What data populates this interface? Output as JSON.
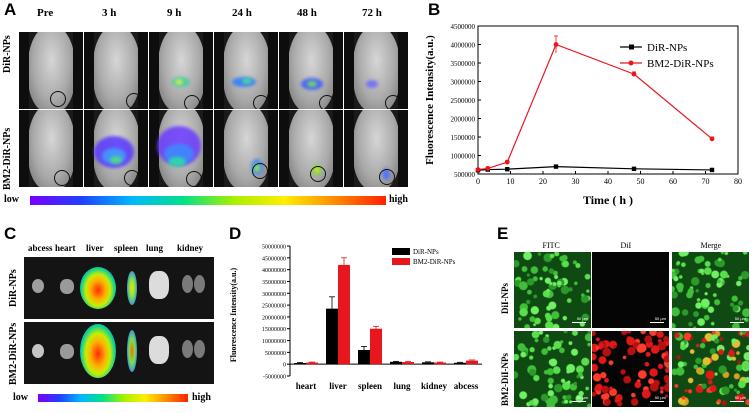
{
  "panelA": {
    "letter": "A",
    "timepoints": [
      "Pre",
      "3 h",
      "9 h",
      "24 h",
      "48 h",
      "72 h"
    ],
    "rows": [
      "DiR-NPs",
      "BM2-DiR-NPs"
    ],
    "scale_low": "low",
    "scale_high": "high"
  },
  "panelB": {
    "letter": "B",
    "chart_data": {
      "type": "line",
      "title": "",
      "xlabel": "Time ( h )",
      "ylabel": "Fluorescence Intensity(a.u.)",
      "xlim": [
        0,
        80
      ],
      "ylim": [
        500000,
        4500000
      ],
      "x_ticks": [
        "0",
        "10",
        "20",
        "30",
        "40",
        "50",
        "60",
        "70",
        "80"
      ],
      "y_ticks": [
        "500000",
        "1000000",
        "1500000",
        "2000000",
        "2500000",
        "3000000",
        "3500000",
        "4000000",
        "4500000"
      ],
      "legend_position": "top-right",
      "series": [
        {
          "name": "DiR-NPs",
          "color": "#000000",
          "marker": "square",
          "x": [
            0,
            3,
            9,
            24,
            48,
            72
          ],
          "y": [
            600000,
            620000,
            630000,
            700000,
            640000,
            610000
          ],
          "err": [
            20000,
            20000,
            20000,
            40000,
            20000,
            20000
          ]
        },
        {
          "name": "BM2-DiR-NPs",
          "color": "#e8171d",
          "marker": "circle",
          "x": [
            0,
            3,
            9,
            24,
            48,
            72
          ],
          "y": [
            620000,
            650000,
            820000,
            4000000,
            3200000,
            1450000
          ],
          "err": [
            30000,
            40000,
            50000,
            230000,
            60000,
            50000
          ]
        }
      ]
    }
  },
  "panelC": {
    "letter": "C",
    "organs": [
      "abcess",
      "heart",
      "liver",
      "spleen",
      "lung",
      "kidney"
    ],
    "rows": [
      "DiR-NPs",
      "BM2-DiR-NPs"
    ],
    "scale_low": "low",
    "scale_high": "high"
  },
  "panelD": {
    "letter": "D",
    "chart_data": {
      "type": "bar",
      "title": "",
      "xlabel": "",
      "ylabel": "Fluorescence Intensity(a.u.)",
      "ylim": [
        -5000000,
        50000000
      ],
      "y_ticks": [
        "-5000000",
        "0",
        "5000000",
        "10000000",
        "15000000",
        "20000000",
        "25000000",
        "30000000",
        "35000000",
        "40000000",
        "45000000",
        "50000000"
      ],
      "categories": [
        "heart",
        "liver",
        "spleen",
        "lung",
        "kidney",
        "abcess"
      ],
      "legend_position": "top-right",
      "series": [
        {
          "name": "DiR-NPs",
          "color": "#000000",
          "values": [
            500000,
            23500000,
            6000000,
            1000000,
            800000,
            600000
          ],
          "err": [
            200000,
            5000000,
            1500000,
            200000,
            200000,
            200000
          ]
        },
        {
          "name": "BM2-DiR-NPs",
          "color": "#e8171d",
          "values": [
            700000,
            42000000,
            15000000,
            900000,
            700000,
            1500000
          ],
          "err": [
            200000,
            3000000,
            1000000,
            200000,
            200000,
            300000
          ]
        }
      ]
    }
  },
  "panelE": {
    "letter": "E",
    "columns": [
      "FITC",
      "DiI",
      "Merge"
    ],
    "rows": [
      "DiI-NPs",
      "BM2-DiI-NPs"
    ],
    "scalebar": "50 μm"
  }
}
